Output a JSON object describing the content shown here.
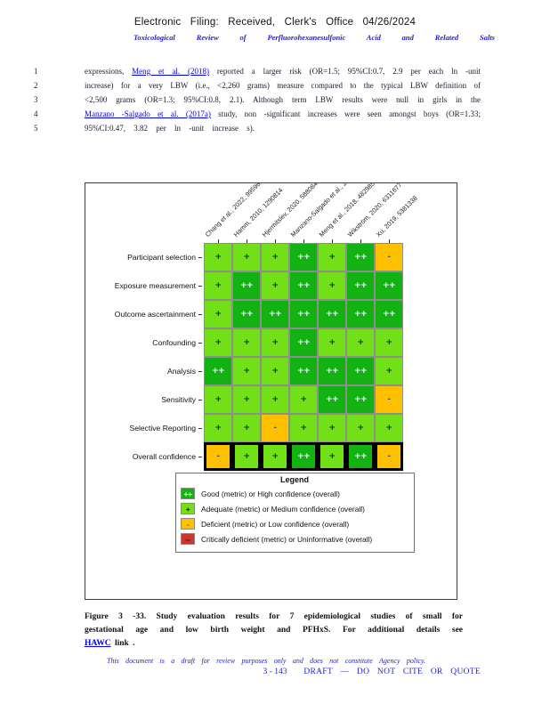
{
  "header": {
    "filing_line": "Electronic Filing: Received, Clerk's Office 04/26/2024",
    "title_line": "Toxicological Review of Perfluorohexanesulfonic Acid and Related Salts"
  },
  "paragraph": {
    "lines": [
      {
        "no": "1",
        "segments": [
          {
            "text": "expressions, ",
            "link": false
          },
          {
            "text": "Meng et al. (2018)",
            "link": true
          },
          {
            "text": " reported a larger risk (OR=1.5; 95%CI:0.7, 2.9 per each ln -unit",
            "link": false
          }
        ]
      },
      {
        "no": "2",
        "segments": [
          {
            "text": "increase) for a very LBW (i.e., <2,260 grams) measure compared to the typical LBW definition of",
            "link": false
          }
        ]
      },
      {
        "no": "3",
        "segments": [
          {
            "text": "<2,500 grams (OR=1.3; 95%CI:0.8, 2.1). Although term LBW results were null in girls in the",
            "link": false
          }
        ]
      },
      {
        "no": "4",
        "segments": [
          {
            "text": "Manzano -Salgado et al. (2017a)",
            "link": true
          },
          {
            "text": " study, non -significant increases were seen amongst boys (OR=1.33;",
            "link": false
          }
        ]
      },
      {
        "no": "5",
        "segments": [
          {
            "text": "95%CI:0.47, 3.82 per ln -unit increase s).",
            "link": false
          }
        ]
      }
    ]
  },
  "chart_data": {
    "type": "heatmap",
    "title": "Study evaluation results for 7 epidemiological studies of small for gestational age and low birth weight and PFHxS",
    "columns": [
      "Chang et al., 2022, 9959668",
      "Hamm, 2010, 1290814",
      "Hjermitslev, 2020, 5880849",
      "Manzano-Salgado et al., 2017, 4238465",
      "Meng et al., 2018, 4829851",
      "Wikström, 2020, 6311677",
      "Xu, 2019, 5381338"
    ],
    "rows": [
      "Participant selection",
      "Exposure measurement",
      "Outcome ascertainment",
      "Confounding",
      "Analysis",
      "Sensitivity",
      "Selective Reporting",
      "Overall confidence"
    ],
    "values": [
      [
        "+",
        "+",
        "+",
        "++",
        "+",
        "++",
        "-"
      ],
      [
        "+",
        "++",
        "+",
        "++",
        "+",
        "++",
        "++"
      ],
      [
        "+",
        "++",
        "++",
        "++",
        "++",
        "++",
        "++"
      ],
      [
        "+",
        "+",
        "+",
        "++",
        "+",
        "+",
        "+"
      ],
      [
        "++",
        "+",
        "+",
        "++",
        "++",
        "++",
        "+"
      ],
      [
        "+",
        "+",
        "+",
        "+",
        "++",
        "++",
        "-"
      ],
      [
        "+",
        "+",
        "-",
        "+",
        "+",
        "+",
        "+"
      ],
      [
        "-",
        "+",
        "+",
        "++",
        "+",
        "++",
        "-"
      ]
    ],
    "value_colors": {
      "++": "#12B212",
      "+": "#72E017",
      "-": "#FFC000",
      "--": "#CC3333"
    },
    "legend": {
      "title": "Legend",
      "entries": [
        {
          "symbol": "++",
          "color": "#12B212",
          "label": "Good (metric) or High confidence (overall)"
        },
        {
          "symbol": "+",
          "color": "#72E017",
          "label": "Adequate (metric) or Medium confidence (overall)"
        },
        {
          "symbol": "-",
          "color": "#FFC000",
          "label": "Deficient (metric) or Low confidence (overall)"
        },
        {
          "symbol": "--",
          "color": "#CC3333",
          "label": "Critically deficient (metric) or Uninformative (overall)"
        }
      ]
    }
  },
  "caption": {
    "lines": [
      {
        "segments": [
          {
            "text": "Figure 3 -33. Study evaluation results for 7 epidemiological studies of small for",
            "link": false
          }
        ]
      },
      {
        "segments": [
          {
            "text": "gestational age and low birth weight and PFHxS. For additional details see",
            "link": false
          }
        ]
      },
      {
        "segments": [
          {
            "text": "HAWC",
            "link": true
          },
          {
            "text": " link .",
            "link": false
          }
        ]
      }
    ]
  },
  "footer": {
    "draft_notice": "This document is a draft for review purposes only and does not constitute Agency policy.",
    "page_number": "3 - 143",
    "draft_stamp": "DRAFT — DO NOT CITE OR QUOTE"
  }
}
